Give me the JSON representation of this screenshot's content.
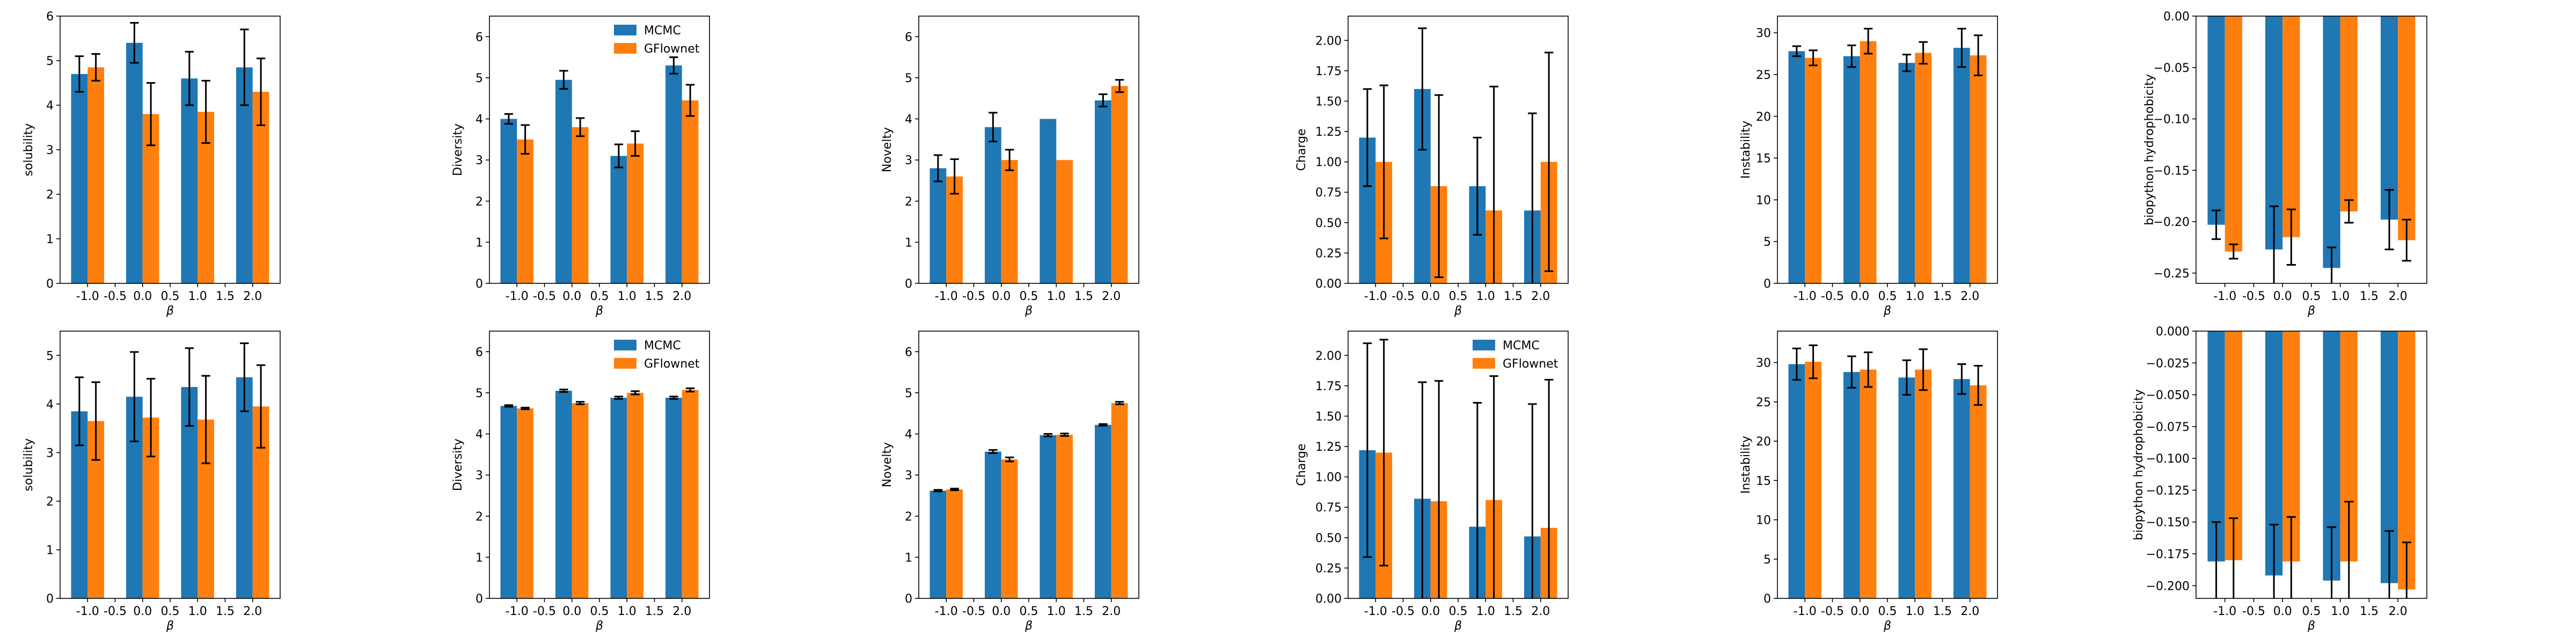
{
  "colors": {
    "mcmc": "#1f77b4",
    "gflownet": "#ff7f0e",
    "error_bar": "#000000"
  },
  "legend_labels": [
    "MCMC",
    "GFlownet"
  ],
  "chart_data": [
    {
      "type": "bar",
      "row": 1,
      "col": 1,
      "xlabel": "β",
      "ylabel": "solubility",
      "x": [
        -1.0,
        0.0,
        1.0,
        2.0
      ],
      "xlim": [
        -1.5,
        2.5
      ],
      "xticks": [
        -1.0,
        -0.5,
        0.0,
        0.5,
        1.0,
        1.5,
        2.0
      ],
      "ylim": [
        0,
        6
      ],
      "yticks": [
        0,
        1,
        2,
        3,
        4,
        5,
        6
      ],
      "tick_decimals": 0,
      "legend": false,
      "series": [
        {
          "name": "MCMC",
          "values": [
            4.7,
            5.4,
            4.6,
            4.85
          ],
          "errors": [
            0.4,
            0.45,
            0.6,
            0.85
          ]
        },
        {
          "name": "GFlownet",
          "values": [
            4.85,
            3.8,
            3.85,
            4.3
          ],
          "errors": [
            0.3,
            0.7,
            0.7,
            0.75
          ]
        }
      ]
    },
    {
      "type": "bar",
      "row": 1,
      "col": 2,
      "xlabel": "β",
      "ylabel": "Diversity",
      "x": [
        -1.0,
        0.0,
        1.0,
        2.0
      ],
      "xlim": [
        -1.5,
        2.5
      ],
      "xticks": [
        -1.0,
        -0.5,
        0.0,
        0.5,
        1.0,
        1.5,
        2.0
      ],
      "ylim": [
        0,
        6.5
      ],
      "yticks": [
        0,
        1,
        2,
        3,
        4,
        5,
        6
      ],
      "tick_decimals": 0,
      "legend": true,
      "legend_position": "top-right",
      "series": [
        {
          "name": "MCMC",
          "values": [
            4.0,
            4.95,
            3.1,
            5.3
          ],
          "errors": [
            0.12,
            0.22,
            0.28,
            0.2
          ]
        },
        {
          "name": "GFlownet",
          "values": [
            3.5,
            3.8,
            3.4,
            4.45
          ],
          "errors": [
            0.35,
            0.22,
            0.3,
            0.38
          ]
        }
      ]
    },
    {
      "type": "bar",
      "row": 1,
      "col": 3,
      "xlabel": "β",
      "ylabel": "Novelty",
      "x": [
        -1.0,
        0.0,
        1.0,
        2.0
      ],
      "xlim": [
        -1.5,
        2.5
      ],
      "xticks": [
        -1.0,
        -0.5,
        0.0,
        0.5,
        1.0,
        1.5,
        2.0
      ],
      "ylim": [
        0,
        6.5
      ],
      "yticks": [
        0,
        1,
        2,
        3,
        4,
        5,
        6
      ],
      "tick_decimals": 0,
      "legend": false,
      "series": [
        {
          "name": "MCMC",
          "values": [
            2.8,
            3.8,
            4.0,
            4.45
          ],
          "errors": [
            0.32,
            0.35,
            0.0,
            0.15
          ]
        },
        {
          "name": "GFlownet",
          "values": [
            2.6,
            3.0,
            3.0,
            4.8
          ],
          "errors": [
            0.42,
            0.25,
            0.0,
            0.15
          ]
        }
      ]
    },
    {
      "type": "bar",
      "row": 1,
      "col": 4,
      "xlabel": "β",
      "ylabel": "Charge",
      "x": [
        -1.0,
        0.0,
        1.0,
        2.0
      ],
      "xlim": [
        -1.5,
        2.5
      ],
      "xticks": [
        -1.0,
        -0.5,
        0.0,
        0.5,
        1.0,
        1.5,
        2.0
      ],
      "ylim": [
        0,
        2.2
      ],
      "yticks": [
        0,
        0.25,
        0.5,
        0.75,
        1.0,
        1.25,
        1.5,
        1.75,
        2.0
      ],
      "tick_decimals": 2,
      "legend": false,
      "series": [
        {
          "name": "MCMC",
          "values": [
            1.2,
            1.6,
            0.8,
            0.6
          ],
          "errors": [
            0.4,
            0.5,
            0.4,
            0.8
          ]
        },
        {
          "name": "GFlownet",
          "values": [
            1.0,
            0.8,
            0.6,
            1.0
          ],
          "errors": [
            0.63,
            0.75,
            1.02,
            0.9
          ]
        }
      ]
    },
    {
      "type": "bar",
      "row": 1,
      "col": 5,
      "xlabel": "β",
      "ylabel": "Instability",
      "x": [
        -1.0,
        0.0,
        1.0,
        2.0
      ],
      "xlim": [
        -1.5,
        2.5
      ],
      "xticks": [
        -1.0,
        -0.5,
        0.0,
        0.5,
        1.0,
        1.5,
        2.0
      ],
      "ylim": [
        0,
        32
      ],
      "yticks": [
        0,
        5,
        10,
        15,
        20,
        25,
        30
      ],
      "tick_decimals": 0,
      "legend": false,
      "series": [
        {
          "name": "MCMC",
          "values": [
            27.8,
            27.2,
            26.4,
            28.2
          ],
          "errors": [
            0.6,
            1.3,
            1.0,
            2.3
          ]
        },
        {
          "name": "GFlownet",
          "values": [
            27.0,
            29.0,
            27.6,
            27.3
          ],
          "errors": [
            0.9,
            1.5,
            1.3,
            2.4
          ]
        }
      ]
    },
    {
      "type": "bar",
      "row": 1,
      "col": 6,
      "xlabel": "β",
      "ylabel": "biopython hydrophobicity",
      "x": [
        -1.0,
        0.0,
        1.0,
        2.0
      ],
      "xlim": [
        -1.5,
        2.5
      ],
      "xticks": [
        -1.0,
        -0.5,
        0.0,
        0.5,
        1.0,
        1.5,
        2.0
      ],
      "ylim": [
        -0.26,
        0
      ],
      "yticks": [
        -0.25,
        -0.2,
        -0.15,
        -0.1,
        -0.05,
        0.0
      ],
      "tick_decimals": 2,
      "legend": false,
      "series": [
        {
          "name": "MCMC",
          "values": [
            -0.203,
            -0.227,
            -0.245,
            -0.198
          ],
          "errors": [
            0.014,
            0.042,
            0.02,
            0.029
          ]
        },
        {
          "name": "GFlownet",
          "values": [
            -0.229,
            -0.215,
            -0.19,
            -0.218
          ],
          "errors": [
            0.007,
            0.027,
            0.011,
            0.02
          ]
        }
      ]
    },
    {
      "type": "bar",
      "row": 2,
      "col": 1,
      "xlabel": "β",
      "ylabel": "solubility",
      "x": [
        -1.0,
        0.0,
        1.0,
        2.0
      ],
      "xlim": [
        -1.5,
        2.5
      ],
      "xticks": [
        -1.0,
        -0.5,
        0.0,
        0.5,
        1.0,
        1.5,
        2.0
      ],
      "ylim": [
        0,
        5.5
      ],
      "yticks": [
        0,
        1,
        2,
        3,
        4,
        5
      ],
      "tick_decimals": 0,
      "legend": false,
      "series": [
        {
          "name": "MCMC",
          "values": [
            3.85,
            4.15,
            4.35,
            4.55
          ],
          "errors": [
            0.7,
            0.92,
            0.8,
            0.7
          ]
        },
        {
          "name": "GFlownet",
          "values": [
            3.65,
            3.72,
            3.68,
            3.95
          ],
          "errors": [
            0.8,
            0.8,
            0.9,
            0.85
          ]
        }
      ]
    },
    {
      "type": "bar",
      "row": 2,
      "col": 2,
      "xlabel": "β",
      "ylabel": "Diversity",
      "x": [
        -1.0,
        0.0,
        1.0,
        2.0
      ],
      "xlim": [
        -1.5,
        2.5
      ],
      "xticks": [
        -1.0,
        -0.5,
        0.0,
        0.5,
        1.0,
        1.5,
        2.0
      ],
      "ylim": [
        0,
        6.5
      ],
      "yticks": [
        0,
        1,
        2,
        3,
        4,
        5,
        6
      ],
      "tick_decimals": 0,
      "legend": true,
      "legend_position": "top-right",
      "series": [
        {
          "name": "MCMC",
          "values": [
            4.68,
            5.05,
            4.88,
            4.88
          ],
          "errors": [
            0.02,
            0.03,
            0.03,
            0.03
          ]
        },
        {
          "name": "GFlownet",
          "values": [
            4.62,
            4.75,
            5.0,
            5.07
          ],
          "errors": [
            0.02,
            0.03,
            0.04,
            0.04
          ]
        }
      ]
    },
    {
      "type": "bar",
      "row": 2,
      "col": 3,
      "xlabel": "β",
      "ylabel": "Novelty",
      "x": [
        -1.0,
        0.0,
        1.0,
        2.0
      ],
      "xlim": [
        -1.5,
        2.5
      ],
      "xticks": [
        -1.0,
        -0.5,
        0.0,
        0.5,
        1.0,
        1.5,
        2.0
      ],
      "ylim": [
        0,
        6.5
      ],
      "yticks": [
        0,
        1,
        2,
        3,
        4,
        5,
        6
      ],
      "tick_decimals": 0,
      "legend": false,
      "series": [
        {
          "name": "MCMC",
          "values": [
            2.62,
            3.57,
            3.97,
            4.22
          ],
          "errors": [
            0.02,
            0.04,
            0.03,
            0.02
          ]
        },
        {
          "name": "GFlownet",
          "values": [
            2.65,
            3.38,
            3.98,
            4.75
          ],
          "errors": [
            0.02,
            0.05,
            0.03,
            0.03
          ]
        }
      ]
    },
    {
      "type": "bar",
      "row": 2,
      "col": 4,
      "xlabel": "β",
      "ylabel": "Charge",
      "x": [
        -1.0,
        0.0,
        1.0,
        2.0
      ],
      "xlim": [
        -1.5,
        2.5
      ],
      "xticks": [
        -1.0,
        -0.5,
        0.0,
        0.5,
        1.0,
        1.5,
        2.0
      ],
      "ylim": [
        0,
        2.2
      ],
      "yticks": [
        0,
        0.25,
        0.5,
        0.75,
        1.0,
        1.25,
        1.5,
        1.75,
        2.0
      ],
      "tick_decimals": 2,
      "legend": true,
      "legend_position": "top-right",
      "series": [
        {
          "name": "MCMC",
          "values": [
            1.22,
            0.82,
            0.59,
            0.51
          ],
          "errors": [
            0.88,
            0.96,
            1.02,
            1.09
          ]
        },
        {
          "name": "GFlownet",
          "values": [
            1.2,
            0.8,
            0.81,
            0.58
          ],
          "errors": [
            0.93,
            0.99,
            1.02,
            1.22
          ]
        }
      ]
    },
    {
      "type": "bar",
      "row": 2,
      "col": 5,
      "xlabel": "β",
      "ylabel": "Instability",
      "x": [
        -1.0,
        0.0,
        1.0,
        2.0
      ],
      "xlim": [
        -1.5,
        2.5
      ],
      "xticks": [
        -1.0,
        -0.5,
        0.0,
        0.5,
        1.0,
        1.5,
        2.0
      ],
      "ylim": [
        0,
        34
      ],
      "yticks": [
        0,
        5,
        10,
        15,
        20,
        25,
        30
      ],
      "tick_decimals": 0,
      "legend": false,
      "series": [
        {
          "name": "MCMC",
          "values": [
            29.8,
            28.8,
            28.1,
            27.9
          ],
          "errors": [
            2.0,
            2.0,
            2.2,
            1.9
          ]
        },
        {
          "name": "GFlownet",
          "values": [
            30.1,
            29.1,
            29.1,
            27.1
          ],
          "errors": [
            2.1,
            2.2,
            2.6,
            2.5
          ]
        }
      ]
    },
    {
      "type": "bar",
      "row": 2,
      "col": 6,
      "xlabel": "β",
      "ylabel": "biopython hydrophobicity",
      "x": [
        -1.0,
        0.0,
        1.0,
        2.0
      ],
      "xlim": [
        -1.5,
        2.5
      ],
      "xticks": [
        -1.0,
        -0.5,
        0.0,
        0.5,
        1.0,
        1.5,
        2.0
      ],
      "ylim": [
        -0.21,
        0
      ],
      "yticks": [
        -0.2,
        -0.175,
        -0.15,
        -0.125,
        -0.1,
        -0.075,
        -0.05,
        -0.025,
        0.0
      ],
      "tick_decimals": 3,
      "legend": false,
      "series": [
        {
          "name": "MCMC",
          "values": [
            -0.181,
            -0.192,
            -0.196,
            -0.198
          ],
          "errors": [
            0.031,
            0.04,
            0.042,
            0.041
          ]
        },
        {
          "name": "GFlownet",
          "values": [
            -0.18,
            -0.181,
            -0.181,
            -0.203
          ],
          "errors": [
            0.033,
            0.035,
            0.047,
            0.037
          ]
        }
      ]
    }
  ]
}
